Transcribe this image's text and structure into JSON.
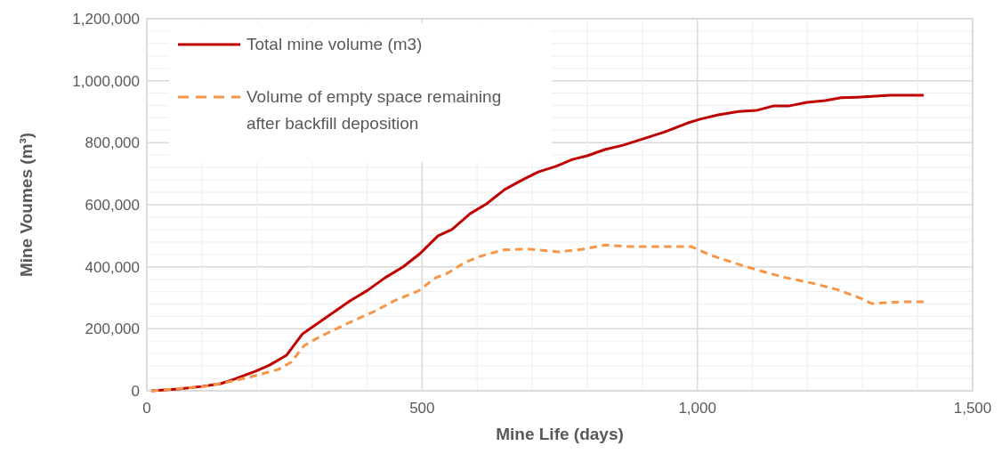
{
  "chart_data": {
    "type": "line",
    "xlabel": "Mine Life (days)",
    "ylabel": "Mine Voumes (m³)",
    "xlim": [
      0,
      1500
    ],
    "ylim": [
      0,
      1200000
    ],
    "xticks": [
      0,
      {
        "value": 100,
        "label": null
      },
      {
        "value": 200,
        "label": null
      },
      {
        "value": 300,
        "label": null
      },
      {
        "value": 400,
        "label": null
      },
      {
        "value": 500,
        "label": "500"
      },
      {
        "value": 600,
        "label": null
      },
      {
        "value": 700,
        "label": null
      },
      {
        "value": 800,
        "label": null
      },
      {
        "value": 900,
        "label": null
      },
      {
        "value": 1000,
        "label": "1,000"
      },
      {
        "value": 1100,
        "label": null
      },
      {
        "value": 1200,
        "label": null
      },
      {
        "value": 1300,
        "label": null
      },
      {
        "value": 1400,
        "label": null
      },
      {
        "value": 1500,
        "label": "1,500"
      }
    ],
    "yticks": [
      0,
      {
        "value": 40000,
        "label": null
      },
      {
        "value": 80000,
        "label": null
      },
      {
        "value": 120000,
        "label": null
      },
      {
        "value": 160000,
        "label": null
      },
      {
        "value": 200000,
        "label": "200,000"
      },
      {
        "value": 240000,
        "label": null
      },
      {
        "value": 280000,
        "label": null
      },
      {
        "value": 320000,
        "label": null
      },
      {
        "value": 360000,
        "label": null
      },
      {
        "value": 400000,
        "label": "400,000"
      },
      {
        "value": 440000,
        "label": null
      },
      {
        "value": 480000,
        "label": null
      },
      {
        "value": 520000,
        "label": null
      },
      {
        "value": 560000,
        "label": null
      },
      {
        "value": 600000,
        "label": "600,000"
      },
      {
        "value": 640000,
        "label": null
      },
      {
        "value": 680000,
        "label": null
      },
      {
        "value": 720000,
        "label": null
      },
      {
        "value": 760000,
        "label": null
      },
      {
        "value": 800000,
        "label": "800,000"
      },
      {
        "value": 840000,
        "label": null
      },
      {
        "value": 880000,
        "label": null
      },
      {
        "value": 920000,
        "label": null
      },
      {
        "value": 960000,
        "label": null
      },
      {
        "value": 1000000,
        "label": "1,000,000"
      },
      {
        "value": 1040000,
        "label": null
      },
      {
        "value": 1080000,
        "label": null
      },
      {
        "value": 1120000,
        "label": null
      },
      {
        "value": 1160000,
        "label": null
      },
      {
        "value": 1200000,
        "label": "1,200,000"
      }
    ],
    "grid": true,
    "legend": "top left",
    "marker": "none",
    "series": [
      {
        "name": "Total mine volume (m3)",
        "color": "#c00000",
        "line_style": "solid",
        "x": [
          8,
          57,
          100,
          134,
          158,
          197,
          223,
          254,
          283,
          369,
          401,
          433,
          465,
          496,
          529,
          554,
          587,
          617,
          650,
          682,
          711,
          743,
          773,
          800,
          832,
          865,
          897,
          941,
          983,
          1005,
          1038,
          1075,
          1107,
          1139,
          1167,
          1199,
          1232,
          1261,
          1290,
          1350,
          1411
        ],
        "values": [
          0,
          6000,
          14000,
          23000,
          37000,
          63000,
          83000,
          115000,
          184000,
          290000,
          324000,
          365000,
          399000,
          442000,
          500000,
          520000,
          571000,
          603000,
          649000,
          680000,
          706000,
          724000,
          746000,
          758000,
          778000,
          792000,
          810000,
          835000,
          864000,
          876000,
          890000,
          901000,
          904000,
          919000,
          919000,
          930000,
          936000,
          945000,
          947000,
          953000,
          953000
        ]
      },
      {
        "name": "Volume of empty space remaining after backfill deposition",
        "color": "#f79646",
        "line_style": "dashed",
        "x": [
          8,
          105,
          158,
          197,
          239,
          262,
          286,
          315,
          369,
          412,
          449,
          493,
          525,
          546,
          577,
          606,
          647,
          692,
          747,
          789,
          832,
          876,
          913,
          962,
          989,
          1026,
          1080,
          1112,
          1160,
          1209,
          1253,
          1296,
          1317,
          1371,
          1411
        ],
        "values": [
          0,
          14000,
          32000,
          49000,
          69000,
          92000,
          146000,
          175000,
          221000,
          255000,
          290000,
          322000,
          365000,
          379000,
          413000,
          434000,
          454000,
          457000,
          448000,
          456000,
          470000,
          465000,
          465000,
          465000,
          465000,
          436000,
          405000,
          388000,
          365000,
          347000,
          327000,
          299000,
          281000,
          287000,
          287000
        ]
      }
    ]
  }
}
